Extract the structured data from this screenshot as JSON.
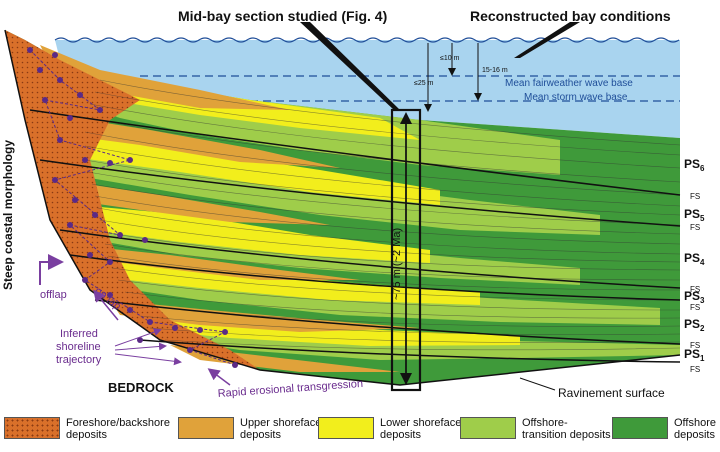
{
  "titles": {
    "left": "Mid-bay section studied (Fig. 4)",
    "right": "Reconstructed bay conditions"
  },
  "water": {
    "fairweather": "Mean fairweather wave base",
    "storm": "Mean storm wave base",
    "depth_10": "≤10 m",
    "depth_15_16": "15-16 m",
    "depth_25": "≤25 m"
  },
  "section": {
    "thickness": "~75 m (~2 Ma)"
  },
  "sequences": [
    "PS6",
    "PS5",
    "PS4",
    "PS3",
    "PS2",
    "PS1"
  ],
  "surfaces": {
    "fs": "FS",
    "ravinement": "Ravinement surface"
  },
  "labels": {
    "coast": "Steep coastal morphology",
    "offlap": "offlap",
    "onlap": "on lap",
    "shoreline": [
      "Inferred",
      "shoreline",
      "trajectory"
    ],
    "bedrock": "BEDROCK",
    "transgression": "Rapid erosional transgression"
  },
  "legend": [
    {
      "label": "Foreshore/backshore deposits",
      "color": "#d9702a"
    },
    {
      "label": "Upper shoreface deposits",
      "color": "#e0a23a"
    },
    {
      "label": "Lower shoreface deposits",
      "color": "#f2ee1c"
    },
    {
      "label": "Offshore-transition deposits",
      "color": "#9fcd4a"
    },
    {
      "label": "Offshore deposits",
      "color": "#3f9a3a"
    }
  ],
  "colors": {
    "water": "#a9d4ef",
    "foreshore": "#d9702a",
    "upper": "#e0a23a",
    "lower": "#f2ee1c",
    "transition": "#9fcd4a",
    "offshore": "#3f9a3a",
    "dots": "#5b2a86",
    "arrow": "#7a3fa0"
  }
}
